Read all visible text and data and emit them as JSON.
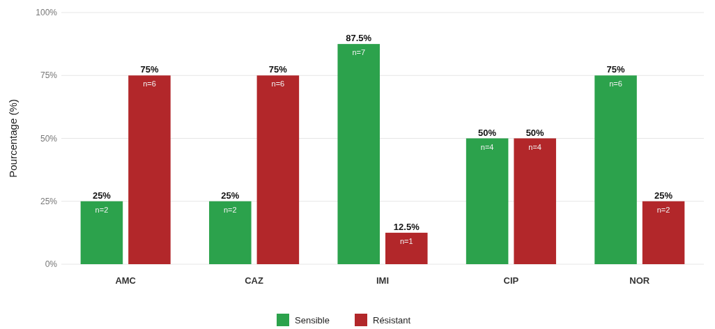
{
  "chart_data": {
    "type": "bar",
    "ylabel": "Pourcentage (%)",
    "categories": [
      "AMC",
      "CAZ",
      "IMI",
      "CIP",
      "NOR"
    ],
    "series": [
      {
        "name": "Sensible",
        "color": "#2ca24c",
        "values": [
          25,
          25,
          87.5,
          50,
          75
        ],
        "value_labels": [
          "25%",
          "25%",
          "87.5%",
          "50%",
          "75%"
        ]
      },
      {
        "name": "Résistant",
        "color": "#b2272a",
        "values": [
          75,
          75,
          12.5,
          50,
          25
        ],
        "value_labels": [
          "75%",
          "75%",
          "12.5%",
          "50%",
          "25%"
        ]
      }
    ],
    "ylim": [
      0,
      100
    ],
    "yticks": [
      {
        "value": 0,
        "label": "0%"
      },
      {
        "value": 25,
        "label": "25%"
      },
      {
        "value": 50,
        "label": "50%"
      },
      {
        "value": 75,
        "label": "75%"
      },
      {
        "value": 100,
        "label": "100%"
      }
    ],
    "grid": "y",
    "legend": "bottom",
    "annotations": [
      {
        "text": "n=2",
        "x": "AMC",
        "y": 25
      },
      {
        "text": "n=6",
        "x": "AMC",
        "y": 75
      },
      {
        "text": "n=2",
        "x": "CAZ",
        "y": 25
      },
      {
        "text": "n=6",
        "x": "CAZ",
        "y": 75
      },
      {
        "text": "n=7",
        "x": "IMI",
        "y": 87.5
      },
      {
        "text": "n=1",
        "x": "IMI",
        "y": 12.5
      },
      {
        "text": "n=4",
        "x": "CIP",
        "y": 50
      },
      {
        "text": "n=4",
        "x": "CIP",
        "y": 50
      },
      {
        "text": "n=6",
        "x": "NOR",
        "y": 75
      },
      {
        "text": "n=2",
        "x": "NOR",
        "y": 25
      }
    ]
  }
}
